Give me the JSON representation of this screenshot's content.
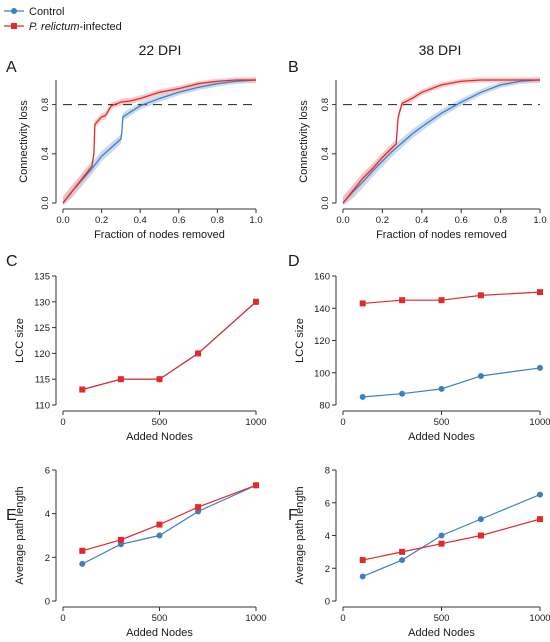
{
  "legend": {
    "items": [
      {
        "label_plain": "Control",
        "color": "#3f7fc1",
        "marker": "circle"
      },
      {
        "label_italic": "P. relictum",
        "label_plain": "-infected",
        "color": "#e02b2b",
        "marker": "square"
      }
    ]
  },
  "colors": {
    "control": "#3f7fc1",
    "infected": "#e02b2b",
    "control_band": "#b8cdea",
    "infected_band": "#f5b8b8"
  },
  "chart_data": [
    {
      "panel": "A",
      "type": "line",
      "title": "22 DPI",
      "xlabel": "Fraction of nodes removed",
      "ylabel": "Connectivity loss",
      "xlim": [
        0,
        1
      ],
      "ylim": [
        0,
        1
      ],
      "xticks": [
        "0.0",
        "0.2",
        "0.4",
        "0.6",
        "0.8",
        "1.0"
      ],
      "yticks": [
        "0.0",
        "0.4",
        "0.8"
      ],
      "reference_line": 0.8,
      "series": [
        {
          "key": "infected",
          "x": [
            0,
            0.05,
            0.1,
            0.15,
            0.16,
            0.165,
            0.2,
            0.22,
            0.25,
            0.3,
            0.35,
            0.4,
            0.5,
            0.6,
            0.7,
            0.8,
            0.9,
            1.0
          ],
          "y": [
            0.0,
            0.1,
            0.2,
            0.3,
            0.4,
            0.64,
            0.7,
            0.71,
            0.79,
            0.82,
            0.83,
            0.85,
            0.9,
            0.93,
            0.97,
            0.99,
            1.0,
            1.0
          ]
        },
        {
          "key": "control",
          "x": [
            0,
            0.05,
            0.1,
            0.15,
            0.2,
            0.25,
            0.3,
            0.305,
            0.31,
            0.35,
            0.4,
            0.5,
            0.6,
            0.7,
            0.8,
            0.9,
            1.0
          ],
          "y": [
            0.0,
            0.1,
            0.19,
            0.28,
            0.38,
            0.45,
            0.52,
            0.58,
            0.7,
            0.74,
            0.79,
            0.85,
            0.9,
            0.94,
            0.97,
            0.99,
            1.0
          ]
        }
      ]
    },
    {
      "panel": "B",
      "type": "line",
      "title": "38 DPI",
      "xlabel": "Fraction of nodes removed",
      "ylabel": "Connectivity loss",
      "xlim": [
        0,
        1
      ],
      "ylim": [
        0,
        1
      ],
      "xticks": [
        "0.0",
        "0.2",
        "0.4",
        "0.6",
        "0.8",
        "1.0"
      ],
      "yticks": [
        "0.0",
        "0.4",
        "0.8"
      ],
      "reference_line": 0.8,
      "series": [
        {
          "key": "infected",
          "x": [
            0,
            0.05,
            0.1,
            0.15,
            0.2,
            0.25,
            0.27,
            0.28,
            0.3,
            0.35,
            0.4,
            0.5,
            0.6,
            0.7,
            0.8,
            1.0
          ],
          "y": [
            0.0,
            0.1,
            0.2,
            0.28,
            0.37,
            0.45,
            0.48,
            0.7,
            0.81,
            0.85,
            0.9,
            0.96,
            0.99,
            1.0,
            1.0,
            1.0
          ]
        },
        {
          "key": "control",
          "x": [
            0,
            0.05,
            0.1,
            0.15,
            0.2,
            0.25,
            0.3,
            0.35,
            0.4,
            0.5,
            0.6,
            0.7,
            0.8,
            0.9,
            1.0
          ],
          "y": [
            0.0,
            0.09,
            0.17,
            0.26,
            0.34,
            0.42,
            0.49,
            0.56,
            0.62,
            0.73,
            0.82,
            0.9,
            0.96,
            0.99,
            1.0
          ]
        }
      ]
    },
    {
      "panel": "C",
      "type": "line",
      "xlabel": "Added Nodes",
      "ylabel": "LCC size",
      "xlim": [
        0,
        1000
      ],
      "ylim": [
        110,
        135
      ],
      "xticks": [
        0,
        500,
        1000
      ],
      "yticks": [
        110,
        115,
        120,
        125,
        130,
        135
      ],
      "x": [
        100,
        300,
        500,
        700,
        1000
      ],
      "series": [
        {
          "key": "infected",
          "marker": "square",
          "values": [
            113,
            115,
            115,
            120,
            130
          ]
        },
        {
          "key": "control",
          "marker": "circle",
          "values": [
            113,
            115,
            115,
            120,
            130
          ]
        }
      ]
    },
    {
      "panel": "D",
      "type": "line",
      "xlabel": "Added Nodes",
      "ylabel": "LCC size",
      "xlim": [
        0,
        1000
      ],
      "ylim": [
        80,
        160
      ],
      "xticks": [
        0,
        500,
        1000
      ],
      "yticks": [
        80,
        100,
        120,
        140,
        160
      ],
      "x": [
        100,
        300,
        500,
        700,
        1000
      ],
      "series": [
        {
          "key": "infected",
          "marker": "square",
          "values": [
            143,
            145,
            145,
            148,
            150
          ]
        },
        {
          "key": "control",
          "marker": "circle",
          "values": [
            85,
            87,
            90,
            98,
            103
          ]
        }
      ]
    },
    {
      "panel": "E",
      "type": "line",
      "xlabel": "Added Nodes",
      "ylabel": "Average path length",
      "xlim": [
        0,
        1000
      ],
      "ylim": [
        0,
        6
      ],
      "xticks": [
        0,
        500,
        1000
      ],
      "yticks": [
        0,
        2,
        4,
        6
      ],
      "x": [
        100,
        300,
        500,
        700,
        1000
      ],
      "series": [
        {
          "key": "infected",
          "marker": "square",
          "values": [
            2.3,
            2.8,
            3.5,
            4.3,
            5.3
          ]
        },
        {
          "key": "control",
          "marker": "circle",
          "values": [
            1.7,
            2.6,
            3.0,
            4.1,
            5.3
          ]
        }
      ]
    },
    {
      "panel": "F",
      "type": "line",
      "xlabel": "Added Nodes",
      "ylabel": "Average path length",
      "xlim": [
        0,
        1000
      ],
      "ylim": [
        0,
        8
      ],
      "xticks": [
        0,
        500,
        1000
      ],
      "yticks": [
        0,
        2,
        4,
        6,
        8
      ],
      "x": [
        100,
        300,
        500,
        700,
        1000
      ],
      "series": [
        {
          "key": "infected",
          "marker": "square",
          "values": [
            2.5,
            3.0,
            3.5,
            4.0,
            5.0
          ]
        },
        {
          "key": "control",
          "marker": "circle",
          "values": [
            1.5,
            2.5,
            4.0,
            5.0,
            6.5
          ]
        }
      ]
    }
  ]
}
